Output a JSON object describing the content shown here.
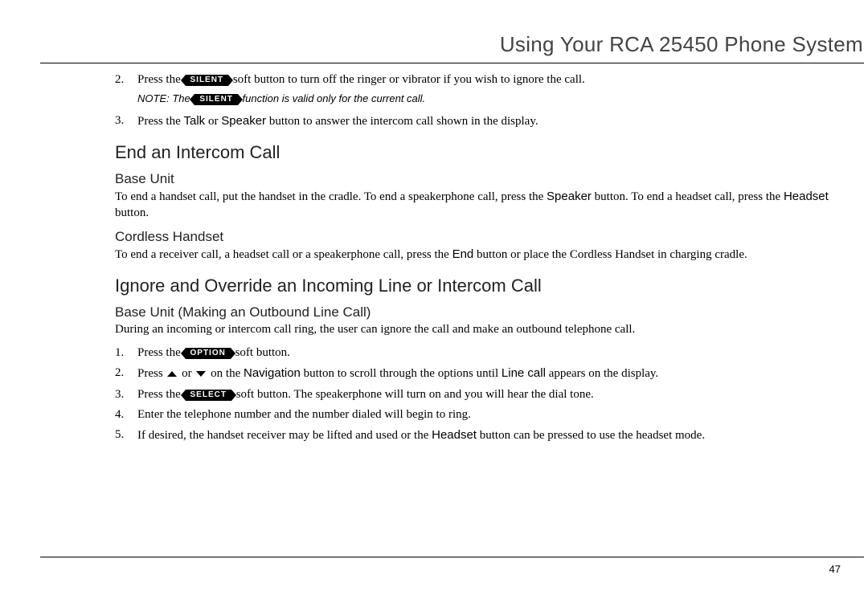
{
  "page": {
    "running_head": "Using Your RCA 25450 Phone System",
    "page_number": "47"
  },
  "btn": {
    "silent": "SILENT",
    "option": "OPTION",
    "select": "SELECT"
  },
  "kb": {
    "talk": "Talk",
    "speaker": "Speaker",
    "headset": "Headset",
    "end_btn": "End",
    "navigation": "Navigation",
    "line_call": "Line call"
  },
  "top_steps": {
    "s2": {
      "num": "2.",
      "a": "Press the ",
      "b": " soft button to turn off the ringer or vibrator if you wish to ignore the call."
    },
    "note": {
      "a": "NOTE: The ",
      "b": " function is valid only for the current call."
    },
    "s3": {
      "num": "3.",
      "a": "Press the ",
      "b": " or ",
      "c": " button to answer the intercom call shown in the display."
    }
  },
  "end_call": {
    "heading": "End an Intercom Call",
    "base": {
      "heading": "Base Unit",
      "p_a": "To end a handset call, put the handset in the cradle. To end a speakerphone call, press the ",
      "p_b": " button. To end a headset call, press the ",
      "p_c": " button."
    },
    "cordless": {
      "heading": "Cordless Handset",
      "p_a": "To end a receiver call, a headset call or a speakerphone call, press the ",
      "p_b": " button or place the Cordless Handset in charging cradle."
    }
  },
  "ignore": {
    "heading": "Ignore and Override an Incoming Line or Intercom Call",
    "sub": {
      "heading": "Base Unit (Making an Outbound Line Call)",
      "intro": "During an incoming or intercom call ring, the user can ignore the call and make an outbound telephone call.",
      "s1": {
        "num": "1.",
        "a": "Press the ",
        "b": " soft button."
      },
      "s2": {
        "num": "2.",
        "a": "Press ",
        "b": " or ",
        "c": " on the ",
        "d": " button to scroll through the options until ",
        "e": " appears on the display."
      },
      "s3": {
        "num": "3.",
        "a": "Press the ",
        "b": " soft button.  The speakerphone will turn on and you will hear the dial tone."
      },
      "s4": {
        "num": "4.",
        "text": "Enter the telephone number and the number dialed will begin to ring."
      },
      "s5": {
        "num": "5.",
        "a": "If desired, the handset receiver may be lifted and used or the ",
        "b": " button can be pressed to use the headset mode."
      }
    }
  }
}
